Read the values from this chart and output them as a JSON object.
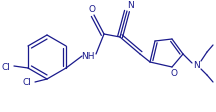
{
  "bg_color": "#ffffff",
  "line_color": "#1a1a8c",
  "text_color": "#1a1a8c",
  "figsize": [
    2.16,
    1.13
  ],
  "dpi": 100,
  "xlim": [
    0,
    216
  ],
  "ylim": [
    0,
    113
  ]
}
